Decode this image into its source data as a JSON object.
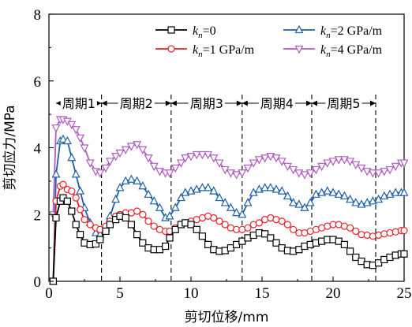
{
  "chart_data": {
    "type": "line",
    "xlabel": "剪切位移/mm",
    "ylabel": "剪切应力/MPa",
    "xlim": [
      0,
      25
    ],
    "ylim": [
      0,
      8
    ],
    "xticks": [
      "0",
      "5",
      "10",
      "15",
      "20",
      "25"
    ],
    "yticks": [
      "0",
      "2",
      "4",
      "6",
      "8"
    ],
    "grid": false,
    "legend_position": "top-right",
    "periods": [
      {
        "label": "周期1",
        "start": 0.5,
        "end": 3.7
      },
      {
        "label": "周期2",
        "start": 3.7,
        "end": 8.6
      },
      {
        "label": "周期3",
        "start": 8.6,
        "end": 13.6
      },
      {
        "label": "周期4",
        "start": 13.6,
        "end": 18.5
      },
      {
        "label": "周期5",
        "start": 18.5,
        "end": 23.0
      }
    ],
    "period_boundaries": [
      3.7,
      8.6,
      13.6,
      18.5,
      23.0
    ],
    "series": [
      {
        "sub": "n",
        "value": "=0",
        "color": "#000000",
        "marker": "square",
        "x": [
          0.3,
          0.5,
          0.8,
          1.0,
          1.3,
          1.6,
          1.9,
          2.2,
          2.5,
          2.9,
          3.3,
          3.6,
          4.0,
          4.3,
          4.7,
          5.0,
          5.4,
          5.8,
          6.2,
          6.6,
          7.0,
          7.4,
          7.8,
          8.2,
          8.5,
          8.9,
          9.3,
          9.6,
          10.0,
          10.4,
          10.8,
          11.2,
          11.6,
          12.0,
          12.4,
          12.8,
          13.2,
          13.6,
          14.0,
          14.4,
          14.8,
          15.2,
          15.6,
          16.0,
          16.4,
          16.8,
          17.2,
          17.6,
          18.0,
          18.4,
          18.8,
          19.2,
          19.6,
          20.0,
          20.4,
          20.8,
          21.2,
          21.6,
          22.0,
          22.4,
          22.8,
          23.2,
          23.6,
          24.0,
          24.4,
          24.8,
          25.0
        ],
        "y": [
          0.0,
          1.9,
          2.4,
          2.5,
          2.4,
          2.1,
          1.7,
          1.4,
          1.15,
          1.1,
          1.12,
          1.25,
          1.5,
          1.7,
          1.85,
          1.95,
          1.9,
          1.7,
          1.4,
          1.15,
          1.0,
          0.95,
          0.95,
          1.05,
          1.3,
          1.55,
          1.7,
          1.75,
          1.7,
          1.55,
          1.35,
          1.1,
          0.95,
          0.9,
          0.92,
          1.0,
          1.1,
          1.2,
          1.3,
          1.38,
          1.45,
          1.42,
          1.3,
          1.15,
          1.0,
          0.92,
          0.9,
          0.95,
          1.05,
          1.1,
          1.15,
          1.2,
          1.25,
          1.25,
          1.2,
          1.1,
          0.9,
          0.72,
          0.6,
          0.5,
          0.48,
          0.55,
          0.65,
          0.72,
          0.78,
          0.82,
          0.82
        ]
      },
      {
        "sub": "n",
        "value": "=1 GPa/m",
        "color": "#e8202a",
        "marker": "circle",
        "x": [
          0.3,
          0.5,
          0.8,
          1.0,
          1.3,
          1.6,
          1.9,
          2.2,
          2.5,
          2.9,
          3.3,
          3.6,
          4.0,
          4.3,
          4.7,
          5.0,
          5.4,
          5.8,
          6.2,
          6.6,
          7.0,
          7.4,
          7.8,
          8.2,
          8.5,
          8.9,
          9.3,
          9.6,
          10.0,
          10.4,
          10.8,
          11.2,
          11.6,
          12.0,
          12.4,
          12.8,
          13.2,
          13.6,
          14.0,
          14.4,
          14.8,
          15.2,
          15.6,
          16.0,
          16.4,
          16.8,
          17.2,
          17.6,
          18.0,
          18.4,
          18.8,
          19.2,
          19.6,
          20.0,
          20.4,
          20.8,
          21.2,
          21.6,
          22.0,
          22.4,
          22.8,
          23.2,
          23.6,
          24.0,
          24.4,
          24.8,
          25.0
        ],
        "y": [
          0.0,
          2.4,
          2.85,
          2.9,
          2.75,
          2.7,
          2.5,
          2.15,
          1.85,
          1.7,
          1.6,
          1.55,
          1.65,
          1.8,
          1.95,
          2.0,
          2.05,
          2.05,
          2.1,
          2.0,
          1.8,
          1.65,
          1.55,
          1.5,
          1.5,
          1.6,
          1.7,
          1.75,
          1.8,
          1.85,
          1.9,
          1.95,
          1.9,
          1.8,
          1.7,
          1.6,
          1.55,
          1.55,
          1.6,
          1.7,
          1.75,
          1.85,
          1.9,
          1.85,
          1.8,
          1.7,
          1.55,
          1.45,
          1.45,
          1.5,
          1.55,
          1.6,
          1.65,
          1.7,
          1.7,
          1.65,
          1.6,
          1.5,
          1.4,
          1.38,
          1.35,
          1.38,
          1.42,
          1.45,
          1.48,
          1.52,
          1.52
        ]
      },
      {
        "sub": "n",
        "value": "=2 GPa/m",
        "color": "#1f5fa8",
        "marker": "triangle-up",
        "x": [
          0.3,
          0.5,
          0.8,
          1.0,
          1.3,
          1.6,
          1.9,
          2.2,
          2.5,
          2.9,
          3.3,
          3.6,
          4.0,
          4.3,
          4.7,
          5.0,
          5.4,
          5.8,
          6.2,
          6.6,
          7.0,
          7.4,
          7.8,
          8.2,
          8.5,
          8.9,
          9.3,
          9.6,
          10.0,
          10.4,
          10.8,
          11.2,
          11.6,
          12.0,
          12.4,
          12.8,
          13.2,
          13.6,
          14.0,
          14.4,
          14.8,
          15.2,
          15.6,
          16.0,
          16.4,
          16.8,
          17.2,
          17.6,
          18.0,
          18.4,
          18.8,
          19.2,
          19.6,
          20.0,
          20.4,
          20.8,
          21.2,
          21.6,
          22.0,
          22.4,
          22.8,
          23.2,
          23.6,
          24.0,
          24.4,
          24.8,
          25.0
        ],
        "y": [
          0.0,
          3.2,
          4.2,
          4.25,
          4.2,
          3.7,
          3.2,
          2.7,
          2.2,
          1.75,
          1.45,
          1.4,
          1.6,
          1.95,
          2.45,
          2.8,
          3.0,
          3.05,
          3.0,
          2.85,
          2.6,
          2.4,
          2.2,
          1.9,
          1.95,
          2.2,
          2.5,
          2.65,
          2.7,
          2.75,
          2.8,
          2.8,
          2.7,
          2.5,
          2.35,
          2.2,
          2.05,
          2.0,
          2.35,
          2.65,
          2.75,
          2.8,
          2.8,
          2.75,
          2.7,
          2.55,
          2.35,
          2.3,
          2.2,
          2.35,
          2.6,
          2.65,
          2.7,
          2.65,
          2.6,
          2.55,
          2.45,
          2.35,
          2.3,
          2.35,
          2.4,
          2.45,
          2.55,
          2.6,
          2.65,
          2.65,
          2.65
        ]
      },
      {
        "sub": "n",
        "value": "=4 GPa/m",
        "color": "#b05cc0",
        "marker": "triangle-down",
        "x": [
          0.3,
          0.5,
          0.8,
          1.0,
          1.3,
          1.6,
          1.9,
          2.2,
          2.5,
          2.9,
          3.3,
          3.6,
          4.0,
          4.3,
          4.7,
          5.0,
          5.4,
          5.8,
          6.2,
          6.6,
          7.0,
          7.4,
          7.8,
          8.2,
          8.5,
          8.9,
          9.3,
          9.6,
          10.0,
          10.4,
          10.8,
          11.2,
          11.6,
          12.0,
          12.4,
          12.8,
          13.2,
          13.6,
          14.0,
          14.4,
          14.8,
          15.2,
          15.6,
          16.0,
          16.4,
          16.8,
          17.2,
          17.6,
          18.0,
          18.4,
          18.8,
          19.2,
          19.6,
          20.0,
          20.4,
          20.8,
          21.2,
          21.6,
          22.0,
          22.4,
          22.8,
          23.2,
          23.6,
          24.0,
          24.4,
          24.8,
          25.0
        ],
        "y": [
          2.0,
          4.6,
          4.85,
          4.85,
          4.8,
          4.7,
          4.55,
          4.3,
          4.0,
          3.55,
          3.3,
          3.25,
          3.4,
          3.6,
          3.75,
          3.85,
          3.95,
          4.05,
          4.1,
          3.95,
          3.7,
          3.45,
          3.3,
          3.25,
          3.25,
          3.4,
          3.55,
          3.7,
          3.75,
          3.8,
          3.8,
          3.8,
          3.7,
          3.55,
          3.35,
          3.25,
          3.2,
          3.25,
          3.4,
          3.55,
          3.65,
          3.7,
          3.75,
          3.7,
          3.6,
          3.45,
          3.35,
          3.25,
          3.2,
          3.25,
          3.35,
          3.45,
          3.55,
          3.6,
          3.65,
          3.65,
          3.6,
          3.5,
          3.4,
          3.3,
          3.25,
          3.25,
          3.3,
          3.35,
          3.45,
          3.55,
          3.55
        ]
      }
    ]
  }
}
